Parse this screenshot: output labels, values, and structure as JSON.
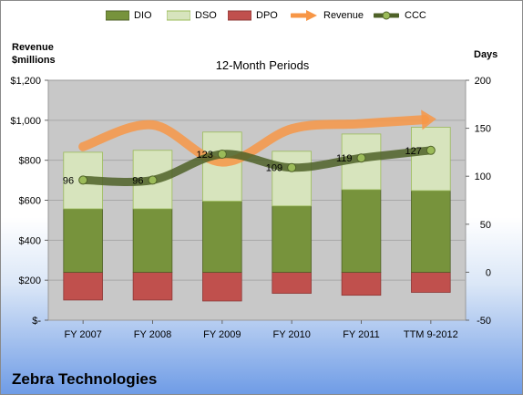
{
  "legend": {
    "dio": "DIO",
    "dso": "DSO",
    "dpo": "DPO",
    "revenue": "Revenue",
    "ccc": "CCC"
  },
  "left_axis_title": [
    "Revenue",
    "$millions"
  ],
  "right_axis_title": "Days",
  "subtitle": "12-Month Periods",
  "company": "Zebra Technologies",
  "colors": {
    "dio": "#77933c",
    "dso": "#d7e4bd",
    "dpo": "#c0504d",
    "revenue": "#f79646",
    "ccc": "#4f6228",
    "plot_bg": "#c8c8c8"
  },
  "chart_data": {
    "type": "bar",
    "categories": [
      "FY 2007",
      "FY 2008",
      "FY 2009",
      "FY 2010",
      "FY 2011",
      "TTM 9-2012"
    ],
    "left_axis": {
      "ylim": [
        0,
        1200
      ],
      "ticks": [
        "$-",
        "$200",
        "$400",
        "$600",
        "$800",
        "$1,000",
        "$1,200"
      ]
    },
    "right_axis": {
      "ylim": [
        -50,
        200
      ],
      "ticks": [
        "-50",
        "0",
        "50",
        "100",
        "150",
        "200"
      ]
    },
    "series": [
      {
        "name": "DIO",
        "axis": "right",
        "values": [
          66,
          66,
          74,
          69,
          86,
          85
        ]
      },
      {
        "name": "DSO",
        "axis": "right",
        "values": [
          59,
          61,
          72,
          57,
          58,
          66
        ]
      },
      {
        "name": "DPO",
        "axis": "right",
        "values": [
          -29,
          -29,
          -30,
          -22,
          -24,
          -21
        ]
      },
      {
        "name": "Revenue",
        "axis": "left",
        "values": [
          868,
          977,
          791,
          957,
          983,
          1005
        ]
      },
      {
        "name": "CCC",
        "axis": "right",
        "values": [
          96,
          96,
          123,
          109,
          119,
          127
        ]
      }
    ],
    "data_labels": [
      "96",
      "96",
      "123",
      "109",
      "119",
      "127"
    ]
  }
}
